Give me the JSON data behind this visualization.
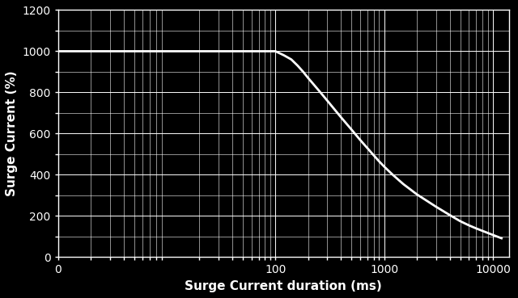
{
  "title": "",
  "xlabel": "Surge Current duration (ms)",
  "ylabel": "Surge Current (%)",
  "background_color": "#000000",
  "text_color": "#ffffff",
  "grid_color": "#ffffff",
  "curve_color": "#ffffff",
  "curve_linewidth": 2.0,
  "xlim_log": [
    1,
    14000
  ],
  "ylim": [
    0,
    1200
  ],
  "yticks": [
    0,
    200,
    400,
    600,
    800,
    1000,
    1200
  ],
  "xtick_labels": [
    "0",
    "100",
    "1000",
    "10000"
  ],
  "xtick_positions": [
    1,
    100,
    1000,
    10000
  ],
  "curve_x": [
    1,
    2,
    3,
    5,
    8,
    10,
    15,
    20,
    30,
    50,
    70,
    100,
    120,
    140,
    160,
    180,
    200,
    250,
    300,
    400,
    500,
    600,
    700,
    800,
    900,
    1000,
    1200,
    1500,
    2000,
    3000,
    4000,
    5000,
    6000,
    7000,
    8000,
    10000,
    12000
  ],
  "curve_y": [
    1000,
    1000,
    1000,
    1000,
    1000,
    1000,
    1000,
    1000,
    1000,
    1000,
    1000,
    1000,
    980,
    960,
    930,
    900,
    870,
    810,
    760,
    680,
    620,
    570,
    530,
    495,
    465,
    440,
    400,
    355,
    305,
    245,
    205,
    175,
    155,
    140,
    128,
    108,
    92
  ],
  "figsize": [
    6.4,
    3.69
  ],
  "dpi": 100,
  "label_fontsize": 11,
  "tick_fontsize": 10
}
